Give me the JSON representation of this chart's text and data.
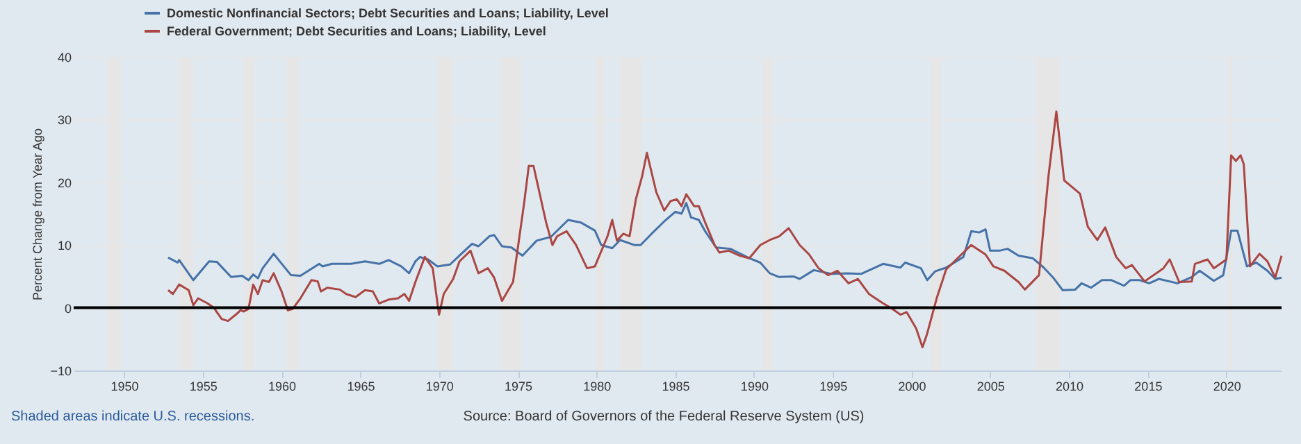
{
  "chart_data": {
    "type": "line",
    "ylabel": "Percent Change from Year Ago",
    "legend": "top left",
    "grid": "y",
    "line_style": "solid",
    "marker": "none",
    "xlim": [
      1946.8,
      2023.5
    ],
    "xticks": [
      1950,
      1955,
      1960,
      1965,
      1970,
      1975,
      1980,
      1985,
      1990,
      1995,
      2000,
      2005,
      2010,
      2015,
      2020
    ],
    "ylim": [
      -10,
      40
    ],
    "yticks": [
      -10,
      0,
      10,
      20,
      30,
      40
    ],
    "annotations": [
      "Shaded areas indicate U.S. recessions.",
      "Source: Board of Governors of the Federal Reserve System (US)"
    ],
    "ref_lines": [
      {
        "axis": "y",
        "value": 0,
        "label": null,
        "color": "#000000"
      }
    ],
    "bands": [
      {
        "axis": "x",
        "from": 1948.9,
        "to": 1949.8,
        "label": null,
        "color": "#e6e6e6"
      },
      {
        "axis": "x",
        "from": 1953.5,
        "to": 1954.4,
        "label": null,
        "color": "#e6e6e6"
      },
      {
        "axis": "x",
        "from": 1957.6,
        "to": 1958.3,
        "label": null,
        "color": "#e6e6e6"
      },
      {
        "axis": "x",
        "from": 1960.3,
        "to": 1961.1,
        "label": null,
        "color": "#e6e6e6"
      },
      {
        "axis": "x",
        "from": 1969.9,
        "to": 1970.9,
        "label": null,
        "color": "#e6e6e6"
      },
      {
        "axis": "x",
        "from": 1973.9,
        "to": 1975.2,
        "label": null,
        "color": "#e6e6e6"
      },
      {
        "axis": "x",
        "from": 1980.0,
        "to": 1980.5,
        "label": null,
        "color": "#e6e6e6"
      },
      {
        "axis": "x",
        "from": 1981.5,
        "to": 1982.9,
        "label": null,
        "color": "#e6e6e6"
      },
      {
        "axis": "x",
        "from": 1990.5,
        "to": 1991.2,
        "label": null,
        "color": "#e6e6e6"
      },
      {
        "axis": "x",
        "from": 2001.2,
        "to": 2001.9,
        "label": null,
        "color": "#e6e6e6"
      },
      {
        "axis": "x",
        "from": 2007.9,
        "to": 2009.4,
        "label": null,
        "color": "#e6e6e6"
      },
      {
        "axis": "x",
        "from": 2020.1,
        "to": 2020.4,
        "label": null,
        "color": "#e6e6e6"
      }
    ],
    "series": [
      {
        "name": "Domestic Nonfinancial Sectors; Debt Securities and Loans; Liability, Level",
        "color": "#4572a7",
        "x": [
          1952.8,
          1953.4,
          1953.5,
          1954.4,
          1955.4,
          1955.9,
          1956.8,
          1957.5,
          1957.9,
          1958.2,
          1958.5,
          1958.8,
          1959.5,
          1960.6,
          1961.2,
          1962.4,
          1962.6,
          1963.2,
          1964.4,
          1965.3,
          1966.2,
          1966.8,
          1967.6,
          1968.1,
          1968.5,
          1968.8,
          1969.0,
          1969.3,
          1969.9,
          1970.7,
          1971.5,
          1972.1,
          1972.5,
          1973.2,
          1973.5,
          1974.0,
          1974.6,
          1975.3,
          1976.2,
          1977.1,
          1978.2,
          1979.0,
          1979.9,
          1980.3,
          1981.0,
          1981.5,
          1982.4,
          1982.8,
          1983.5,
          1984.4,
          1985.0,
          1985.4,
          1985.7,
          1986.0,
          1986.5,
          1986.9,
          1987.6,
          1988.5,
          1989.7,
          1990.4,
          1991.0,
          1991.6,
          1992.5,
          1992.9,
          1993.8,
          1994.9,
          1995.9,
          1996.8,
          1998.2,
          1999.3,
          1999.6,
          2000.6,
          2001.0,
          2001.5,
          2002.2,
          2003.3,
          2003.8,
          2004.3,
          2004.7,
          2005.0,
          2005.6,
          2006.1,
          2006.8,
          2007.7,
          2008.4,
          2009.0,
          2009.6,
          2010.4,
          2010.8,
          2011.4,
          2012.1,
          2012.7,
          2013.5,
          2013.9,
          2014.5,
          2015.1,
          2015.7,
          2016.9,
          2017.8,
          2018.3,
          2019.2,
          2019.8,
          2020.3,
          2020.7,
          2021.3,
          2021.9,
          2022.6,
          2023.1,
          2023.5
        ],
        "values": [
          8.0,
          7.2,
          7.6,
          4.4,
          7.4,
          7.3,
          4.9,
          5.1,
          4.4,
          5.3,
          4.7,
          6.3,
          8.6,
          5.2,
          5.1,
          7.0,
          6.6,
          7.0,
          7.0,
          7.4,
          7.0,
          7.6,
          6.6,
          5.5,
          7.4,
          8.1,
          7.9,
          7.7,
          6.6,
          6.9,
          8.8,
          10.2,
          9.8,
          11.4,
          11.6,
          9.8,
          9.6,
          8.3,
          10.7,
          11.3,
          14.0,
          13.6,
          12.3,
          10.0,
          9.5,
          10.8,
          10.0,
          10.0,
          11.8,
          14.0,
          15.3,
          15.0,
          16.7,
          14.4,
          14.0,
          12.2,
          9.6,
          9.4,
          7.9,
          7.2,
          5.5,
          4.9,
          5.0,
          4.6,
          6.0,
          5.4,
          5.5,
          5.4,
          7.0,
          6.4,
          7.2,
          6.3,
          4.4,
          5.8,
          6.4,
          8.1,
          12.2,
          12.0,
          12.5,
          9.1,
          9.1,
          9.4,
          8.3,
          7.9,
          6.4,
          4.8,
          2.8,
          2.9,
          3.9,
          3.2,
          4.4,
          4.4,
          3.5,
          4.4,
          4.4,
          3.9,
          4.6,
          3.9,
          4.9,
          5.9,
          4.3,
          5.2,
          12.3,
          12.3,
          6.6,
          7.2,
          5.9,
          4.6,
          4.8
        ]
      },
      {
        "name": "Federal Government; Debt Securities and Loans; Liability, Level",
        "color": "#aa4643",
        "x": [
          1952.8,
          1953.1,
          1953.5,
          1954.1,
          1954.4,
          1954.7,
          1955.3,
          1955.7,
          1956.2,
          1956.6,
          1957.1,
          1957.4,
          1957.6,
          1957.9,
          1958.2,
          1958.5,
          1958.8,
          1959.2,
          1959.5,
          1960.0,
          1960.4,
          1960.7,
          1961.2,
          1961.9,
          1962.3,
          1962.5,
          1962.9,
          1963.7,
          1964.1,
          1964.7,
          1965.3,
          1965.8,
          1966.2,
          1966.8,
          1967.4,
          1967.8,
          1968.1,
          1968.5,
          1969.1,
          1969.6,
          1970.0,
          1970.3,
          1970.9,
          1971.3,
          1972.0,
          1972.5,
          1973.1,
          1973.5,
          1974.0,
          1974.7,
          1975.4,
          1975.7,
          1976.0,
          1976.8,
          1977.2,
          1977.5,
          1978.1,
          1978.7,
          1979.4,
          1979.9,
          1980.7,
          1981.0,
          1981.3,
          1981.7,
          1982.1,
          1982.5,
          1982.9,
          1983.2,
          1983.8,
          1984.3,
          1984.7,
          1985.1,
          1985.4,
          1985.7,
          1986.2,
          1986.5,
          1986.9,
          1987.5,
          1987.8,
          1988.4,
          1989.1,
          1989.7,
          1990.4,
          1991.0,
          1991.6,
          1992.2,
          1992.9,
          1993.5,
          1994.1,
          1994.7,
          1995.3,
          1996.0,
          1996.6,
          1997.3,
          1998.2,
          1998.8,
          1999.3,
          1999.7,
          2000.3,
          2000.7,
          2001.0,
          2001.6,
          2002.2,
          2003.3,
          2003.8,
          2004.7,
          2005.2,
          2005.9,
          2006.8,
          2007.2,
          2008.1,
          2008.7,
          2009.2,
          2009.7,
          2010.7,
          2011.2,
          2011.8,
          2012.3,
          2013.0,
          2013.6,
          2014.0,
          2014.8,
          2016.0,
          2016.4,
          2017.0,
          2017.8,
          2018.0,
          2018.8,
          2019.2,
          2020.0,
          2020.3,
          2020.6,
          2020.9,
          2021.1,
          2021.5,
          2022.1,
          2022.6,
          2023.1,
          2023.5
        ],
        "values": [
          2.8,
          2.2,
          3.7,
          2.8,
          0.4,
          1.5,
          0.7,
          0.0,
          -1.8,
          -2.1,
          -1.1,
          -0.4,
          -0.6,
          -0.2,
          3.7,
          2.2,
          4.4,
          4.1,
          5.5,
          2.6,
          -0.4,
          -0.2,
          1.5,
          4.4,
          4.2,
          2.6,
          3.2,
          2.9,
          2.2,
          1.7,
          2.8,
          2.6,
          0.7,
          1.3,
          1.5,
          2.2,
          1.1,
          4.1,
          8.1,
          6.3,
          -1.1,
          2.2,
          4.6,
          7.4,
          9.1,
          5.5,
          6.3,
          4.8,
          1.1,
          4.1,
          16.6,
          22.6,
          22.6,
          13.6,
          10.0,
          11.4,
          12.2,
          10.0,
          6.3,
          6.6,
          11.4,
          14.0,
          10.7,
          11.8,
          11.4,
          17.3,
          21.0,
          24.7,
          18.4,
          15.5,
          17.0,
          17.3,
          16.2,
          18.1,
          16.2,
          16.2,
          13.6,
          10.0,
          8.8,
          9.1,
          8.3,
          7.9,
          10.0,
          10.8,
          11.4,
          12.7,
          10.0,
          8.5,
          6.3,
          5.2,
          5.9,
          3.9,
          4.6,
          2.2,
          0.7,
          -0.2,
          -1.1,
          -0.7,
          -3.3,
          -6.3,
          -4.1,
          1.5,
          6.1,
          8.8,
          10.0,
          8.5,
          6.6,
          5.9,
          4.1,
          2.9,
          5.2,
          21.0,
          31.3,
          20.3,
          18.2,
          12.9,
          10.8,
          12.8,
          8.1,
          6.3,
          6.8,
          4.2,
          6.3,
          7.7,
          4.1,
          4.2,
          7.0,
          7.7,
          6.3,
          7.7,
          24.3,
          23.4,
          24.3,
          22.9,
          6.6,
          8.6,
          7.4,
          4.8,
          8.3
        ]
      }
    ]
  }
}
